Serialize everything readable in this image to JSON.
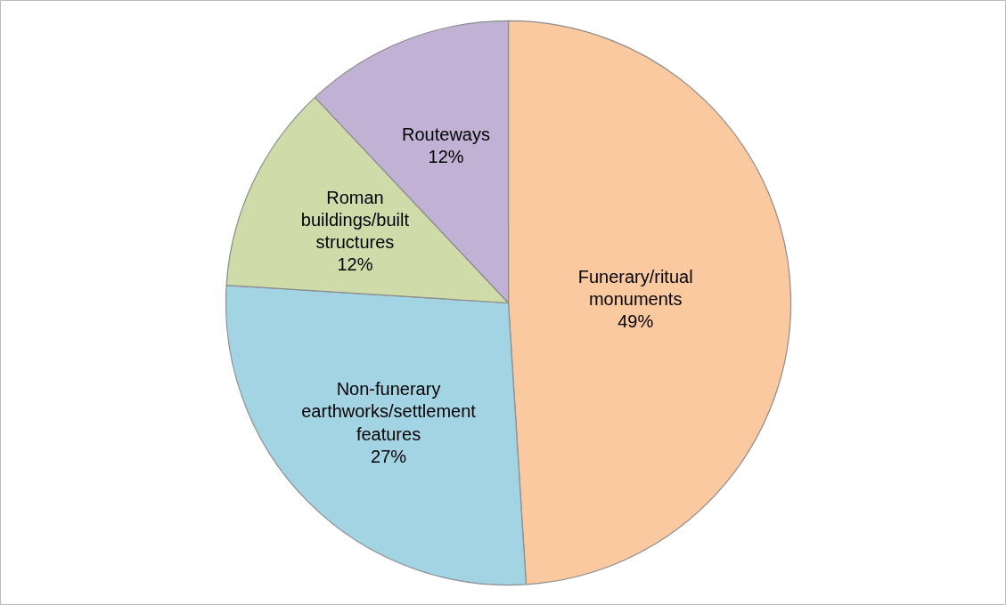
{
  "chart_data": {
    "type": "pie",
    "categories": [
      "Funerary/ritual monuments",
      "Non-funerary earthworks/settlement features",
      "Roman buildings/built structures",
      "Routeways"
    ],
    "values": [
      49,
      27,
      12,
      12
    ],
    "value_labels": [
      "49%",
      "27%",
      "12%",
      "12%"
    ],
    "colors": [
      "#fac9a0",
      "#a3d4e3",
      "#cfdcaa",
      "#c1b1d4"
    ]
  }
}
